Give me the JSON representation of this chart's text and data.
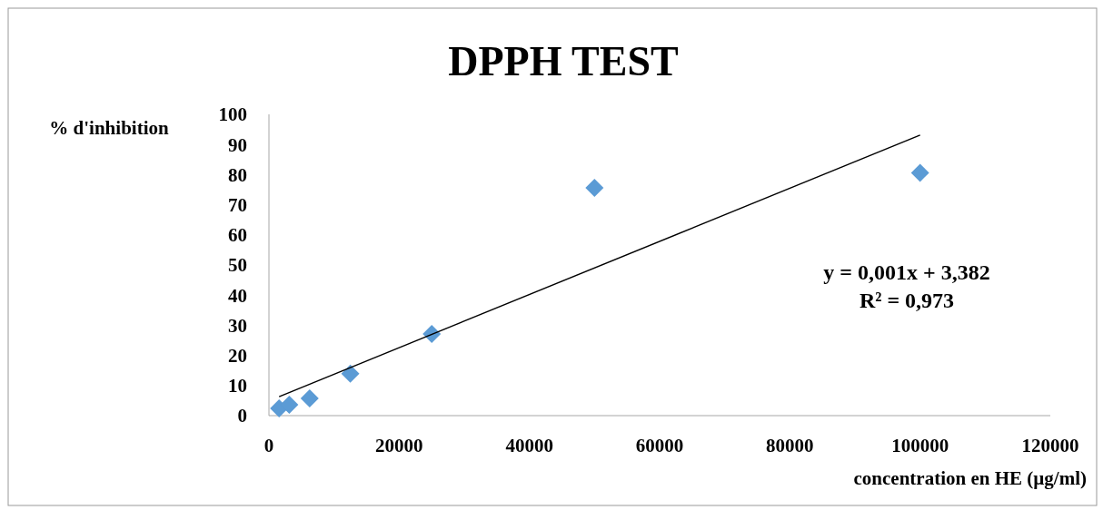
{
  "chart_data": {
    "type": "scatter",
    "title": "DPPH TEST",
    "xlabel": "concentration en HE (µg/ml)",
    "ylabel": "% d'inhibition",
    "x": [
      1562.5,
      3125,
      6250,
      12500,
      25000,
      50000,
      100000
    ],
    "series": [
      {
        "color": "#5b9bd5",
        "marker": "diamond",
        "values": [
          2.4,
          3.6,
          5.7,
          13.9,
          27.1,
          75.6,
          80.6
        ]
      },
      {
        "type": "line",
        "color": "#000000",
        "x": [
          1562.5,
          100000
        ],
        "values": [
          6.3,
          93.1
        ],
        "marker": "none"
      }
    ],
    "xlim": [
      0,
      120000
    ],
    "xticks": [
      0,
      20000,
      40000,
      60000,
      80000,
      100000,
      120000
    ],
    "ylim": [
      0,
      100
    ],
    "yticks": [
      0,
      10,
      20,
      30,
      40,
      50,
      60,
      70,
      80,
      90,
      100
    ],
    "annotations": [
      "y = 0,001x + 3,382",
      "R² = 0,973"
    ],
    "grid": false
  }
}
